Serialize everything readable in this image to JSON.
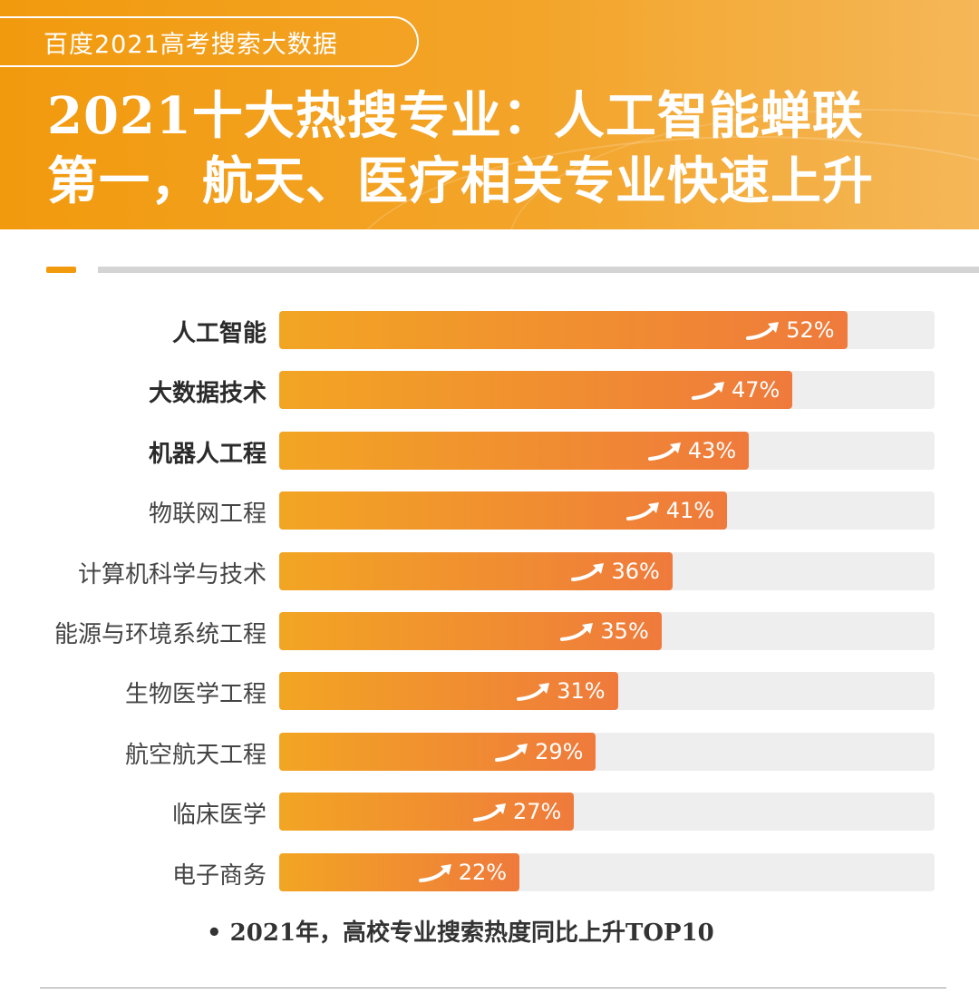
{
  "header": {
    "tag": "百度2021高考搜索大数据",
    "title_line1": "2021十大热搜专业：人工智能蝉联",
    "title_line2": "第一，航天、医疗相关专业快速上升"
  },
  "colors": {
    "header_orange": "#f29a0e",
    "bar_start": "#f2a523",
    "bar_end": "#ef7a3c",
    "track": "#eeeeee"
  },
  "chart_data": {
    "type": "bar",
    "orientation": "horizontal",
    "categories": [
      "人工智能",
      "大数据技术",
      "机器人工程",
      "物联网工程",
      "计算机科学与技术",
      "能源与环境系统工程",
      "生物医学工程",
      "航空航天工程",
      "临床医学",
      "电子商务"
    ],
    "values": [
      52,
      47,
      43,
      41,
      36,
      35,
      31,
      29,
      27,
      22
    ],
    "value_labels": [
      "52%",
      "47%",
      "43%",
      "41%",
      "36%",
      "35%",
      "31%",
      "29%",
      "27%",
      "22%"
    ],
    "bold_categories": [
      "人工智能",
      "大数据技术",
      "机器人工程"
    ],
    "xlim": [
      0,
      60
    ],
    "value_icon": "trend-up-arrow-icon",
    "caption": "• 2021年，高校专业搜索热度同比上升TOP10"
  }
}
